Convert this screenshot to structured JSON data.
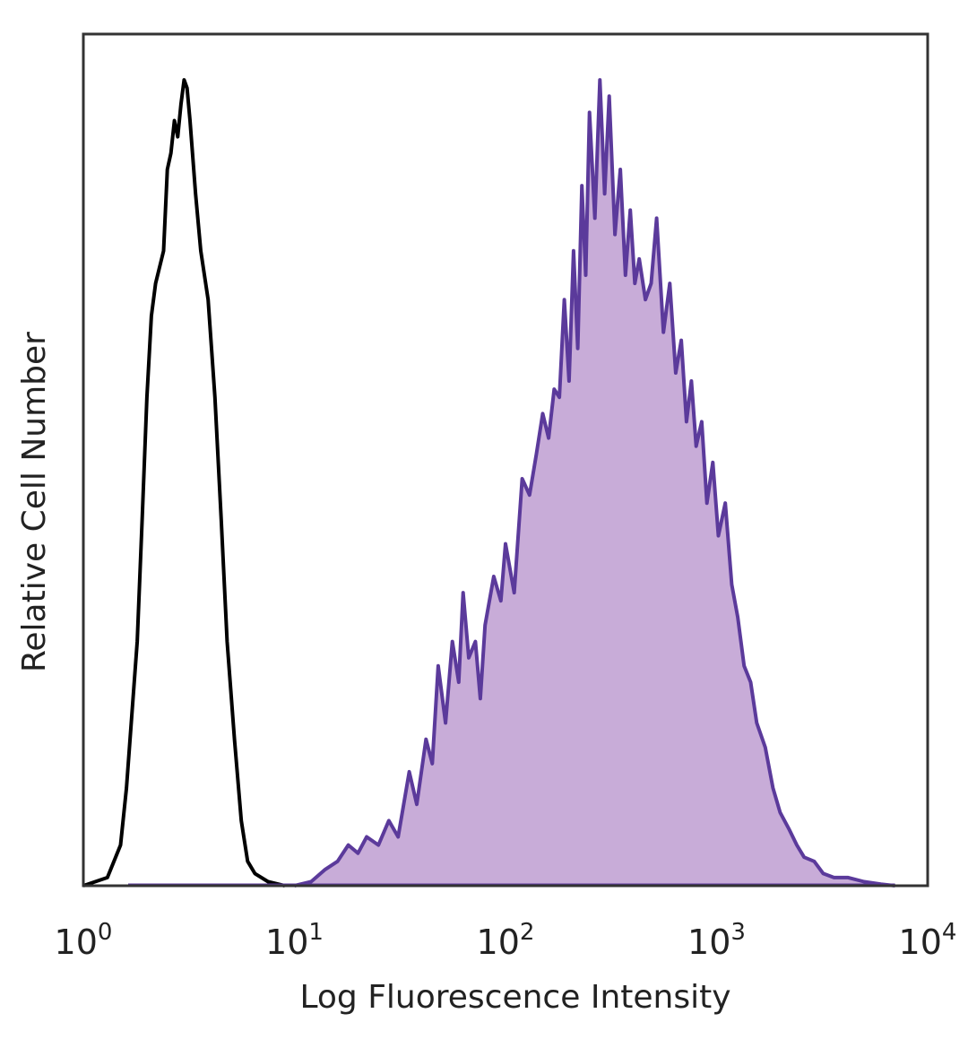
{
  "chart_data": {
    "type": "area",
    "title": "",
    "xlabel": "Log Fluorescence Intensity",
    "ylabel": "Relative Cell Number",
    "x_scale": "log",
    "xlim": [
      1,
      10000
    ],
    "ylim": [
      0,
      1
    ],
    "grid": false,
    "legend": "none",
    "x_ticks": [
      {
        "value": 1,
        "base": "10",
        "exp": "0"
      },
      {
        "value": 10,
        "base": "10",
        "exp": "1"
      },
      {
        "value": 100,
        "base": "10",
        "exp": "2"
      },
      {
        "value": 1000,
        "base": "10",
        "exp": "3"
      },
      {
        "value": 10000,
        "base": "10",
        "exp": "4"
      }
    ],
    "series": [
      {
        "style": "outline",
        "color": "#000000",
        "points": [
          [
            1.0,
            0.0
          ],
          [
            1.3,
            0.01
          ],
          [
            1.5,
            0.05
          ],
          [
            1.6,
            0.12
          ],
          [
            1.8,
            0.3
          ],
          [
            1.9,
            0.45
          ],
          [
            2.0,
            0.6
          ],
          [
            2.1,
            0.7
          ],
          [
            2.2,
            0.74
          ],
          [
            2.4,
            0.78
          ],
          [
            2.5,
            0.88
          ],
          [
            2.6,
            0.9
          ],
          [
            2.7,
            0.94
          ],
          [
            2.8,
            0.92
          ],
          [
            2.9,
            0.96
          ],
          [
            3.0,
            0.99
          ],
          [
            3.1,
            0.98
          ],
          [
            3.2,
            0.94
          ],
          [
            3.4,
            0.85
          ],
          [
            3.6,
            0.78
          ],
          [
            3.9,
            0.72
          ],
          [
            4.2,
            0.6
          ],
          [
            4.5,
            0.45
          ],
          [
            4.8,
            0.3
          ],
          [
            5.2,
            0.18
          ],
          [
            5.6,
            0.08
          ],
          [
            6.0,
            0.03
          ],
          [
            6.5,
            0.015
          ],
          [
            7.5,
            0.005
          ],
          [
            9.0,
            0.0
          ]
        ]
      },
      {
        "style": "filled",
        "color": "#5b3a9b",
        "fill": "#c8acd8",
        "points": [
          [
            10,
            0.0
          ],
          [
            12,
            0.005
          ],
          [
            14,
            0.02
          ],
          [
            16,
            0.03
          ],
          [
            18,
            0.05
          ],
          [
            20,
            0.04
          ],
          [
            22,
            0.06
          ],
          [
            25,
            0.05
          ],
          [
            28,
            0.08
          ],
          [
            31,
            0.06
          ],
          [
            35,
            0.14
          ],
          [
            38,
            0.1
          ],
          [
            42,
            0.18
          ],
          [
            45,
            0.15
          ],
          [
            48,
            0.27
          ],
          [
            52,
            0.2
          ],
          [
            56,
            0.3
          ],
          [
            60,
            0.25
          ],
          [
            63,
            0.36
          ],
          [
            67,
            0.28
          ],
          [
            72,
            0.3
          ],
          [
            76,
            0.23
          ],
          [
            80,
            0.32
          ],
          [
            88,
            0.38
          ],
          [
            95,
            0.35
          ],
          [
            100,
            0.42
          ],
          [
            110,
            0.36
          ],
          [
            120,
            0.5
          ],
          [
            130,
            0.48
          ],
          [
            140,
            0.53
          ],
          [
            150,
            0.58
          ],
          [
            160,
            0.55
          ],
          [
            170,
            0.61
          ],
          [
            180,
            0.6
          ],
          [
            190,
            0.72
          ],
          [
            200,
            0.62
          ],
          [
            210,
            0.78
          ],
          [
            220,
            0.66
          ],
          [
            230,
            0.86
          ],
          [
            240,
            0.75
          ],
          [
            250,
            0.95
          ],
          [
            265,
            0.82
          ],
          [
            280,
            0.99
          ],
          [
            295,
            0.85
          ],
          [
            310,
            0.97
          ],
          [
            330,
            0.8
          ],
          [
            350,
            0.88
          ],
          [
            370,
            0.75
          ],
          [
            390,
            0.83
          ],
          [
            410,
            0.74
          ],
          [
            430,
            0.77
          ],
          [
            460,
            0.72
          ],
          [
            490,
            0.74
          ],
          [
            520,
            0.82
          ],
          [
            560,
            0.68
          ],
          [
            600,
            0.74
          ],
          [
            640,
            0.63
          ],
          [
            680,
            0.67
          ],
          [
            720,
            0.57
          ],
          [
            760,
            0.62
          ],
          [
            800,
            0.54
          ],
          [
            850,
            0.57
          ],
          [
            900,
            0.47
          ],
          [
            960,
            0.52
          ],
          [
            1020,
            0.43
          ],
          [
            1100,
            0.47
          ],
          [
            1180,
            0.37
          ],
          [
            1260,
            0.33
          ],
          [
            1350,
            0.27
          ],
          [
            1450,
            0.25
          ],
          [
            1550,
            0.2
          ],
          [
            1700,
            0.17
          ],
          [
            1850,
            0.12
          ],
          [
            2000,
            0.09
          ],
          [
            2200,
            0.07
          ],
          [
            2400,
            0.05
          ],
          [
            2600,
            0.035
          ],
          [
            2900,
            0.03
          ],
          [
            3200,
            0.015
          ],
          [
            3600,
            0.01
          ],
          [
            4200,
            0.01
          ],
          [
            5000,
            0.005
          ],
          [
            6000,
            0.002
          ],
          [
            7000,
            0.0
          ]
        ]
      }
    ]
  }
}
